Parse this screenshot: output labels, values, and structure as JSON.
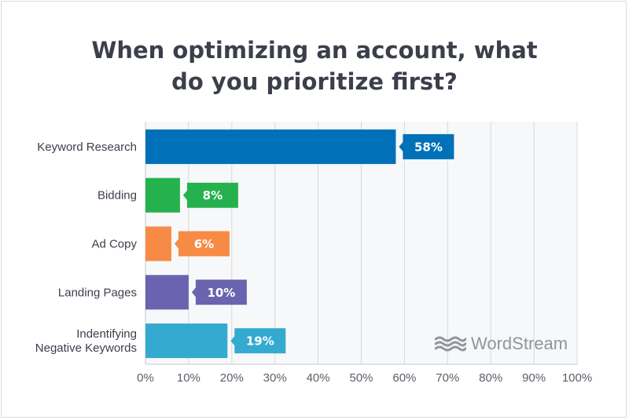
{
  "title_lines": [
    "When optimizing an account, what",
    "do you prioritize first?"
  ],
  "brand": {
    "name": "WordStream",
    "color": "#8f959e"
  },
  "chart_data": {
    "type": "bar",
    "orientation": "horizontal",
    "title": "When optimizing an account, what do you prioritize first?",
    "categories": [
      "Keyword Research",
      "Bidding",
      "Ad Copy",
      "Landing Pages",
      "Indentifying Negative Keywords"
    ],
    "category_label_lines": [
      [
        "Keyword Research"
      ],
      [
        "Bidding"
      ],
      [
        "Ad Copy"
      ],
      [
        "Landing Pages"
      ],
      [
        "Indentifying",
        "Negative Keywords"
      ]
    ],
    "values": [
      58,
      8,
      6,
      10,
      19
    ],
    "value_labels": [
      "58%",
      "8%",
      "6%",
      "10%",
      "19%"
    ],
    "colors": [
      "#0071b9",
      "#25b24e",
      "#f78b45",
      "#6a64b0",
      "#34aad0"
    ],
    "xlim": [
      0,
      100
    ],
    "x_ticks": [
      0,
      10,
      20,
      30,
      40,
      50,
      60,
      70,
      80,
      90,
      100
    ],
    "x_tick_labels": [
      "0%",
      "10%",
      "20%",
      "30%",
      "40%",
      "50%",
      "60%",
      "70%",
      "80%",
      "90%",
      "100%"
    ],
    "xlabel": "",
    "ylabel": "",
    "grid": true,
    "grid_color": "#d5d8dc",
    "data_labels": "callout-after-bar"
  }
}
